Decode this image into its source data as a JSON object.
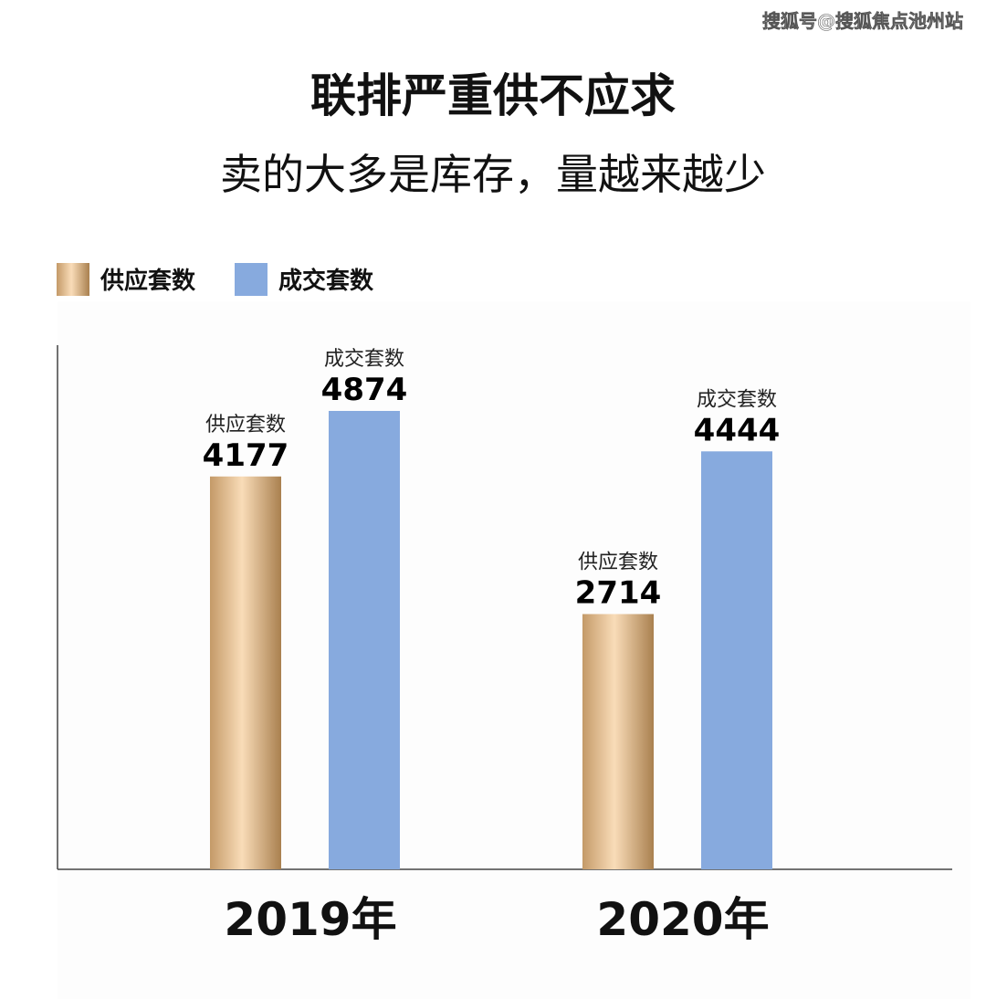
{
  "watermark": "搜狐号@搜狐焦点池州站",
  "chart_data": {
    "type": "bar",
    "title": "联排严重供不应求",
    "subtitle": "卖的大多是库存，量越来越少",
    "categories": [
      "2019年",
      "2020年"
    ],
    "series": [
      {
        "name": "供应套数",
        "color": "#c49a68",
        "values": [
          4177,
          2714
        ]
      },
      {
        "name": "成交套数",
        "color": "#87aade",
        "values": [
          4874,
          4444
        ]
      }
    ]
  }
}
